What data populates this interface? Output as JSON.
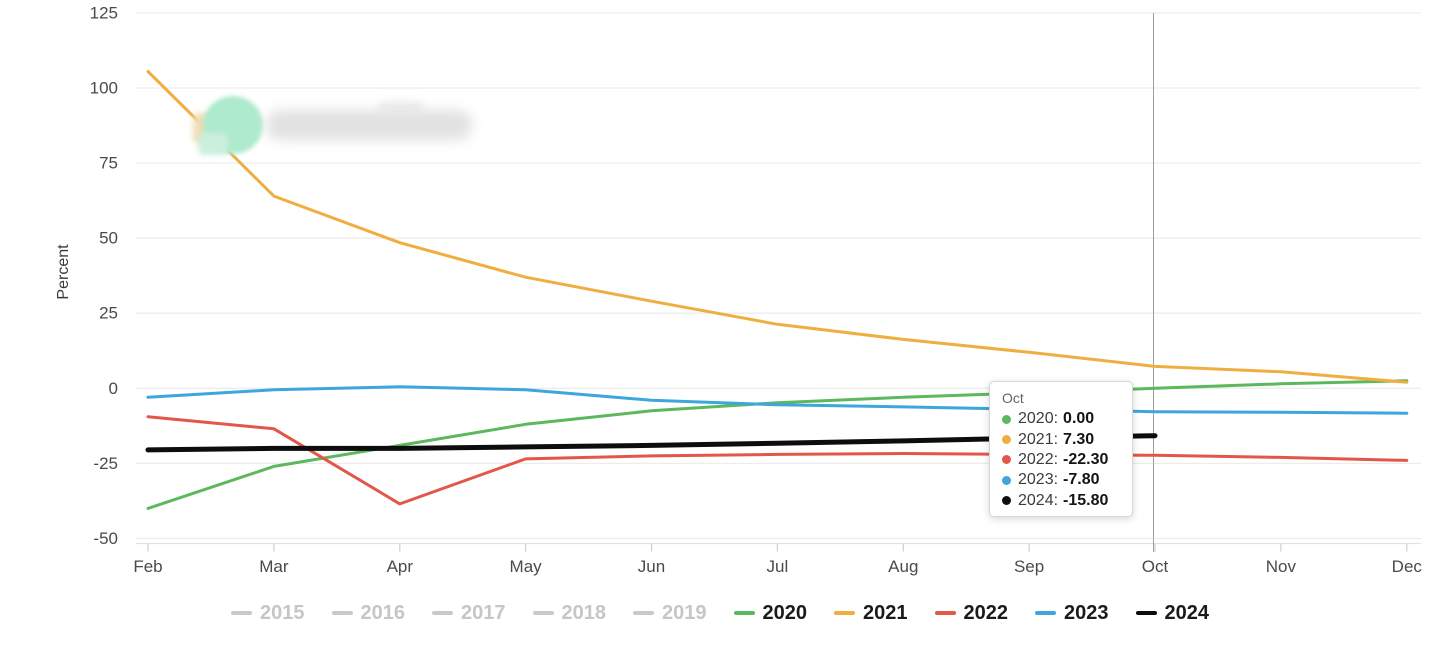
{
  "chart_data": {
    "type": "line",
    "title": "",
    "xlabel": "",
    "ylabel": "Percent",
    "x_categories": [
      "Feb",
      "Mar",
      "Apr",
      "May",
      "Jun",
      "Jul",
      "Aug",
      "Sep",
      "Oct",
      "Nov",
      "Dec"
    ],
    "y_ticks": [
      125,
      100,
      75,
      50,
      25,
      0,
      -25,
      -50
    ],
    "ylim": [
      -50,
      125
    ],
    "grid": true,
    "legend_position": "bottom",
    "crosshair_x": "Oct",
    "series": [
      {
        "name": "2015",
        "color": "#c9c9c9",
        "disabled": true,
        "values": null
      },
      {
        "name": "2016",
        "color": "#c9c9c9",
        "disabled": true,
        "values": null
      },
      {
        "name": "2017",
        "color": "#c9c9c9",
        "disabled": true,
        "values": null
      },
      {
        "name": "2018",
        "color": "#c9c9c9",
        "disabled": true,
        "values": null
      },
      {
        "name": "2019",
        "color": "#c9c9c9",
        "disabled": true,
        "values": null
      },
      {
        "name": "2020",
        "color": "#5cb85c",
        "disabled": false,
        "values": [
          -40.0,
          -26.0,
          -19.0,
          -12.0,
          -7.5,
          -4.8,
          -3.0,
          -1.5,
          0.0,
          1.5,
          2.5
        ]
      },
      {
        "name": "2021",
        "color": "#f0ae41",
        "disabled": false,
        "values": [
          105.5,
          64.0,
          48.5,
          37.0,
          29.0,
          21.3,
          16.3,
          12.0,
          7.3,
          5.5,
          2.0
        ]
      },
      {
        "name": "2022",
        "color": "#e3564a",
        "disabled": false,
        "values": [
          -9.5,
          -13.5,
          -38.5,
          -23.5,
          -22.5,
          -22.0,
          -21.7,
          -22.0,
          -22.3,
          -23.0,
          -24.0
        ]
      },
      {
        "name": "2023",
        "color": "#3da6dc",
        "disabled": false,
        "values": [
          -3.0,
          -0.5,
          0.5,
          -0.5,
          -4.0,
          -5.5,
          -6.2,
          -7.0,
          -7.8,
          -8.0,
          -8.3
        ]
      },
      {
        "name": "2024",
        "color": "#0d0d0d",
        "disabled": false,
        "thick": true,
        "values": [
          -20.5,
          -20.0,
          -20.0,
          -19.5,
          -19.0,
          -18.3,
          -17.5,
          -16.6,
          -15.8
        ]
      }
    ]
  },
  "tooltip": {
    "title": "Oct",
    "rows": [
      {
        "label": "2020",
        "value": "0.00",
        "color": "#5cb85c"
      },
      {
        "label": "2021",
        "value": "7.30",
        "color": "#f0ae41"
      },
      {
        "label": "2022",
        "value": "-22.30",
        "color": "#e3564a"
      },
      {
        "label": "2023",
        "value": "-7.80",
        "color": "#3da6dc"
      },
      {
        "label": "2024",
        "value": "-15.80",
        "color": "#0d0d0d"
      }
    ]
  }
}
